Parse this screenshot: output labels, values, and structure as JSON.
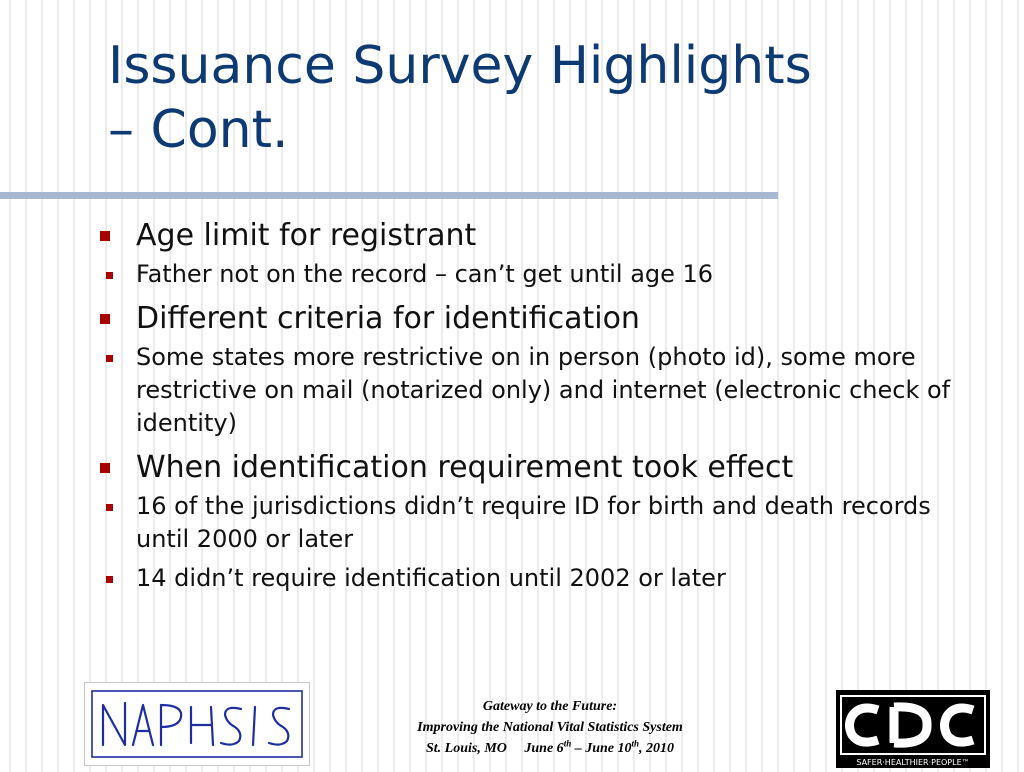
{
  "title": {
    "line1": "Issuance Survey Highlights",
    "line2": "– Cont."
  },
  "bullets": [
    {
      "text": "Age limit for registrant",
      "sub": [
        "Father not on the record – can’t get until age 16"
      ]
    },
    {
      "text": "Different criteria for identification",
      "sub": [
        "Some states more restrictive on in person (photo id), some more restrictive on mail (notarized only) and internet (electronic check of identity)"
      ]
    },
    {
      "text": "When identification requirement took effect",
      "sub": [
        "16 of the jurisdictions didn’t require ID for birth and death records until 2000 or later",
        "14 didn’t require identification until 2002 or later"
      ]
    }
  ],
  "footer": {
    "line1": "Gateway to the Future:",
    "line2": "Improving the National Vital Statistics System",
    "place": "St. Louis, MO",
    "date_start": "June 6",
    "date_start_suffix": "th",
    "date_sep": "– June 10",
    "date_end_suffix": "th",
    "year": ", 2010"
  },
  "logos": {
    "naphsis": "NAPHSIS",
    "cdc": "CDC",
    "cdc_tagline": "SAFER·HEALTHIER·PEOPLE™"
  },
  "colors": {
    "title": "#0d3a73",
    "bullet_marker": "#a80000",
    "rule": "#a7b8d0",
    "naphsis_logo": "#1f2fa0"
  }
}
